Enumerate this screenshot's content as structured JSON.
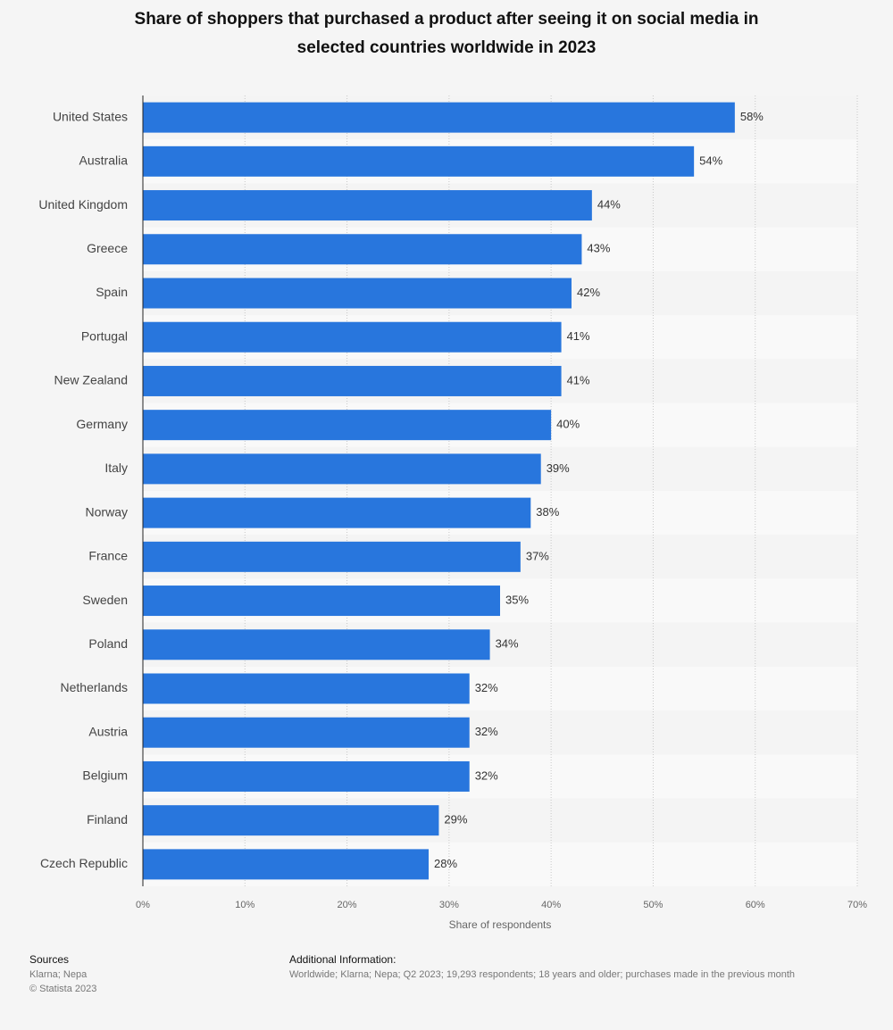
{
  "chart_data": {
    "type": "bar",
    "orientation": "horizontal",
    "title": "Share of shoppers that purchased a product after seeing it on social media in selected countries worldwide in 2023",
    "x_label": "Share of respondents",
    "categories": [
      "United States",
      "Australia",
      "United Kingdom",
      "Greece",
      "Spain",
      "Portugal",
      "New Zealand",
      "Germany",
      "Italy",
      "Norway",
      "France",
      "Sweden",
      "Poland",
      "Netherlands",
      "Austria",
      "Belgium",
      "Finland",
      "Czech Republic"
    ],
    "values": [
      58,
      54,
      44,
      43,
      42,
      41,
      41,
      40,
      39,
      38,
      37,
      35,
      34,
      32,
      32,
      32,
      29,
      28
    ],
    "value_labels": [
      "58%",
      "54%",
      "44%",
      "43%",
      "42%",
      "41%",
      "41%",
      "40%",
      "39%",
      "38%",
      "37%",
      "35%",
      "34%",
      "32%",
      "32%",
      "32%",
      "29%",
      "28%"
    ],
    "color": "#2876dd",
    "xlim": [
      0,
      70
    ],
    "xticks": [
      {
        "value": 0,
        "label": "0%"
      },
      {
        "value": 10,
        "label": "10%"
      },
      {
        "value": 20,
        "label": "20%"
      },
      {
        "value": 30,
        "label": "30%"
      },
      {
        "value": 40,
        "label": "40%"
      },
      {
        "value": 50,
        "label": "50%"
      },
      {
        "value": 60,
        "label": "60%"
      },
      {
        "value": 70,
        "label": "70%"
      }
    ],
    "grid": true
  },
  "footer": {
    "sources_title": "Sources",
    "sources": [
      "Klarna; Nepa",
      "© Statista 2023"
    ],
    "info_title": "Additional Information:",
    "info": "Worldwide; Klarna; Nepa; Q2 2023; 19,293 respondents; 18 years and older; purchases made in the previous month"
  }
}
